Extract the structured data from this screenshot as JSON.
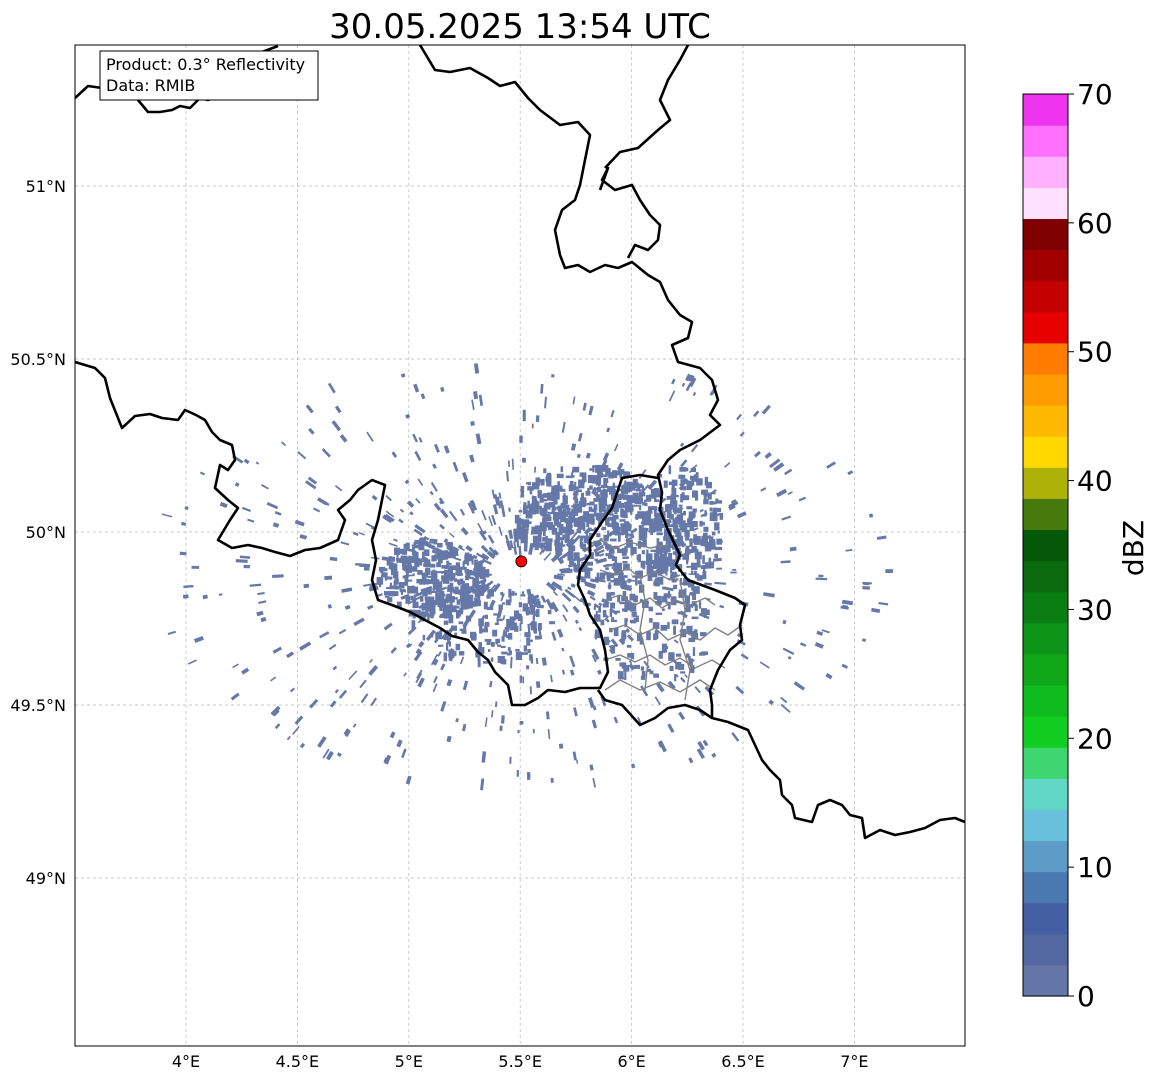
{
  "title": "30.05.2025 13:54 UTC",
  "info_box": {
    "line1": "Product: 0.3° Reflectivity",
    "line2": "Data: RMIB"
  },
  "map": {
    "lon_range": [
      3.5,
      7.5
    ],
    "lat_range": [
      48.55,
      51.4
    ],
    "lon_ticks": [
      {
        "value": 4.0,
        "label": "4°E"
      },
      {
        "value": 4.5,
        "label": "4.5°E"
      },
      {
        "value": 5.0,
        "label": "5°E"
      },
      {
        "value": 5.5,
        "label": "5.5°E"
      },
      {
        "value": 6.0,
        "label": "6°E"
      },
      {
        "value": 6.5,
        "label": "6.5°E"
      },
      {
        "value": 7.0,
        "label": "7°E"
      }
    ],
    "lat_ticks": [
      {
        "value": 49.0,
        "label": "49°N"
      },
      {
        "value": 49.5,
        "label": "49.5°N"
      },
      {
        "value": 50.0,
        "label": "50°N"
      },
      {
        "value": 50.5,
        "label": "50.5°N"
      },
      {
        "value": 51.0,
        "label": "51°N"
      }
    ],
    "radar_site": {
      "lon": 5.505,
      "lat": 49.915,
      "color": "#ff0000"
    },
    "echo_color": "#6578a8",
    "border_color": "#000000",
    "inner_border_color": "#808080"
  },
  "colorbar": {
    "label": "dBZ",
    "ticks": [
      "0",
      "10",
      "20",
      "30",
      "40",
      "50",
      "60",
      "70"
    ],
    "colors": [
      "#6577a8",
      "#5368a0",
      "#4560a2",
      "#4a78b0",
      "#5c9cc6",
      "#68c0dc",
      "#62d6c6",
      "#3ed670",
      "#12ce20",
      "#0fbc1e",
      "#10a818",
      "#0e9416",
      "#0a7e12",
      "#0a6a0e",
      "#045808",
      "#467a0c",
      "#aeb208",
      "#ffd800",
      "#ffba00",
      "#ff9c00",
      "#ff7c00",
      "#e60000",
      "#c40000",
      "#a20000",
      "#7e0000",
      "#ffe0ff",
      "#ffb0ff",
      "#ff70ff",
      "#ee34ee"
    ]
  }
}
